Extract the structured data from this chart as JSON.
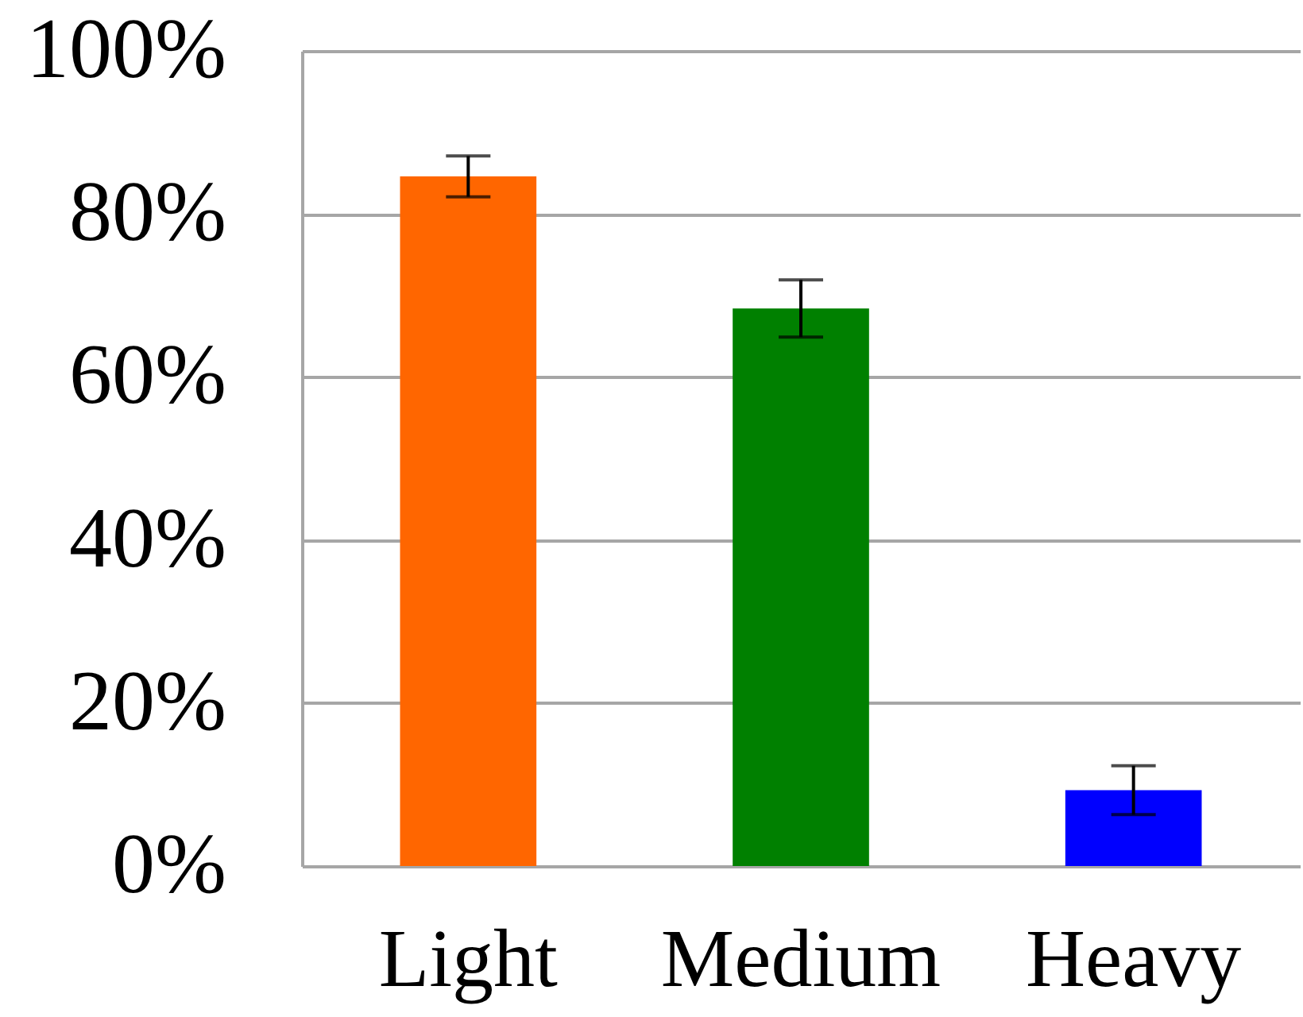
{
  "chart_data": {
    "type": "bar",
    "categories": [
      "Light",
      "Medium",
      "Heavy"
    ],
    "values": [
      84.6,
      68.4,
      9.3
    ],
    "errors": [
      2.5,
      3.5,
      3
    ],
    "colors": [
      "#ff6600",
      "#008000",
      "#0000ff"
    ],
    "ylim": [
      0,
      100
    ],
    "yticks": [
      {
        "value": 0,
        "label": "0%"
      },
      {
        "value": 20,
        "label": "20%"
      },
      {
        "value": 40,
        "label": "40%"
      },
      {
        "value": 60,
        "label": "60%"
      },
      {
        "value": 80,
        "label": "80%"
      },
      {
        "value": 100,
        "label": "100%"
      }
    ],
    "grid": "y"
  }
}
